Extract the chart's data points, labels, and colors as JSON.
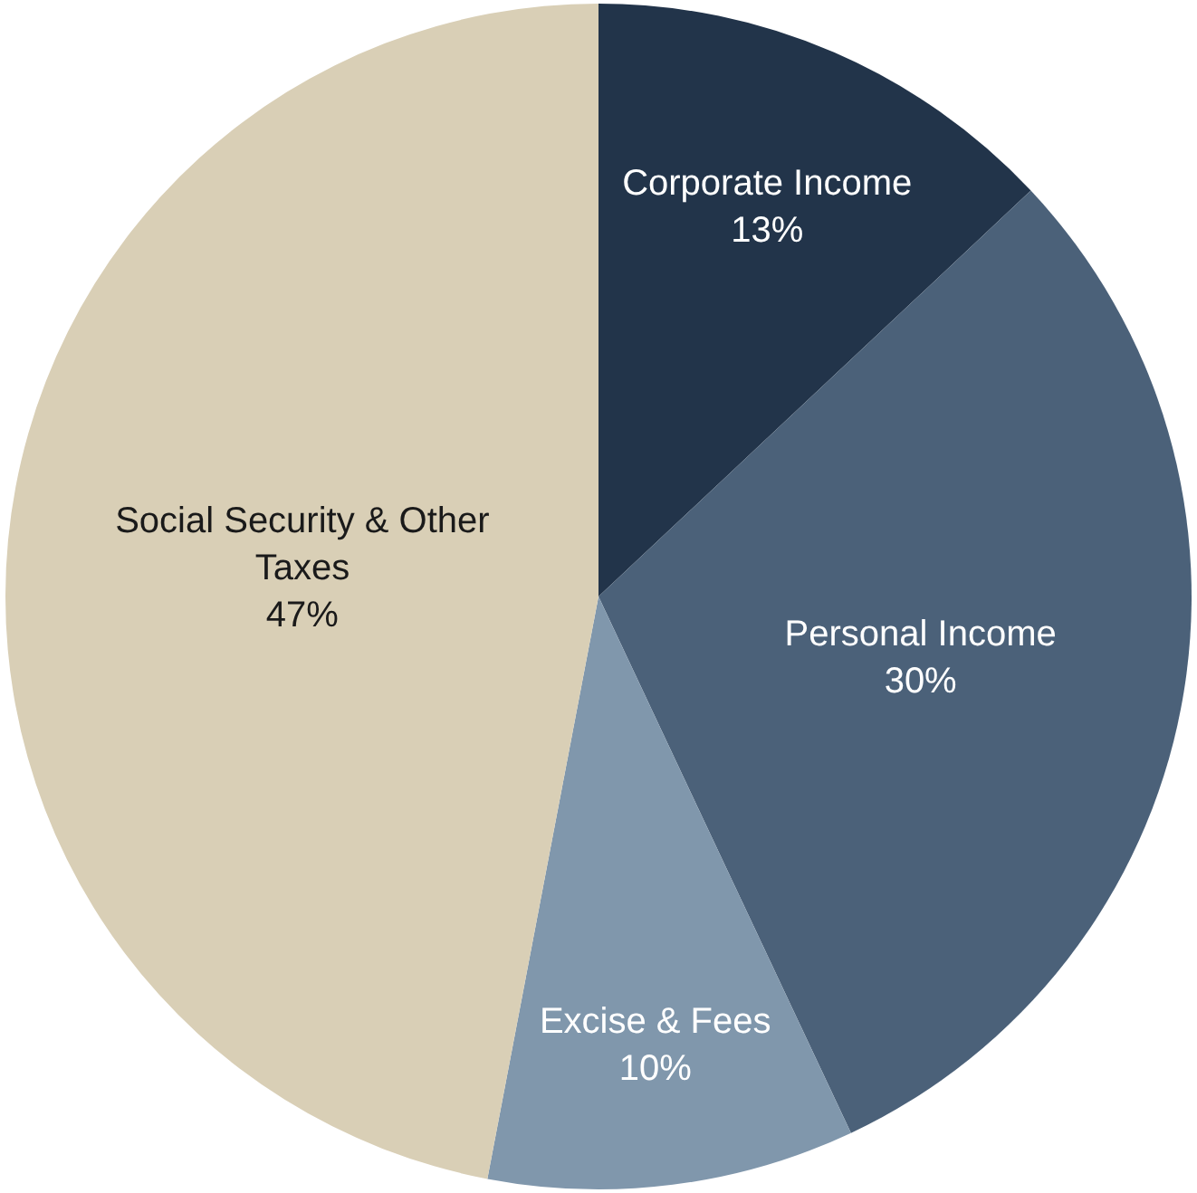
{
  "chart_data": {
    "type": "pie",
    "categories": [
      "Corporate Income",
      "Personal Income",
      "Excise & Fees",
      "Social Security & Other Taxes"
    ],
    "values": [
      13,
      30,
      10,
      47
    ],
    "value_labels": [
      "13%",
      "30%",
      "10%",
      "47%"
    ],
    "colors": [
      "#22344a",
      "#4b6179",
      "#8097ac",
      "#d9cfb6"
    ],
    "legend": false
  }
}
